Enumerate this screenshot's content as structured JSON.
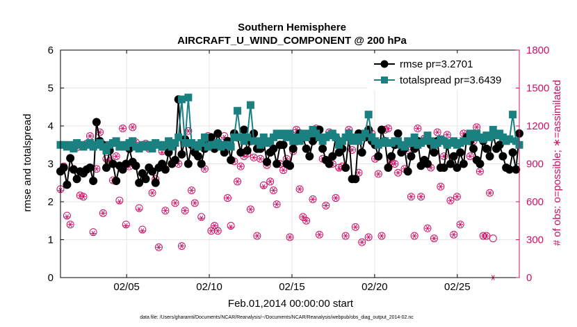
{
  "chart_data": {
    "type": "line",
    "title": "Southern Hemisphere",
    "subtitle": "AIRCRAFT_U_WIND_COMPONENT @ 200 hPa",
    "xlabel": "Feb.01,2014 00:00:00 start",
    "ylabel": "rmse and totalspread",
    "y2label": "# of obs: o=possible; ∗=assimilated",
    "footnote": "data file: /Users/gharamti/Documents/NCAR/Reanalysis/~/Documents/NCAR/Reanalysis/webpub/obs_diag_output_2014-02.nc",
    "xlim": [
      1.0,
      28.75
    ],
    "ylim": [
      0,
      6
    ],
    "y2lim": [
      0,
      1800
    ],
    "x_ticks": [
      5,
      10,
      15,
      20,
      25
    ],
    "x_tick_labels": [
      "02/05",
      "02/10",
      "02/15",
      "02/20",
      "02/25"
    ],
    "y_ticks": [
      0,
      1,
      2,
      3,
      4,
      5,
      6
    ],
    "y_tick_labels": [
      "0",
      "1",
      "2",
      "3",
      "4",
      "5",
      "6"
    ],
    "y2_ticks": [
      0,
      300,
      600,
      900,
      1200,
      1500,
      1800
    ],
    "y2_tick_labels": [
      "0",
      "300",
      "600",
      "900",
      "1200",
      "1500",
      "1800"
    ],
    "grid": true,
    "legend_position": "top-right",
    "colors": {
      "rmse": "#000000",
      "totalspread": "#1a8080",
      "obs": "#cc1166",
      "grid": "#e6e6e6"
    },
    "series": [
      {
        "name": "rmse pr=3.2701",
        "axis": "left",
        "marker": "circle",
        "values": [
          2.8,
          2.9,
          2.45,
          3.15,
          2.85,
          2.6,
          2.8,
          2.75,
          2.85,
          2.9,
          2.55,
          4.1,
          3.6,
          3.5,
          2.9,
          3.35,
          3.0,
          2.55,
          2.95,
          2.85,
          3.0,
          3.4,
          3.05,
          2.95,
          2.5,
          2.75,
          2.6,
          2.9,
          2.8,
          2.5,
          2.9,
          3.0,
          2.85,
          3.3,
          3.0,
          3.1,
          4.7,
          3.25,
          3.65,
          3.0,
          3.5,
          3.3,
          3.2,
          3.0,
          3.4,
          3.6,
          3.7,
          3.4,
          3.8,
          3.5,
          3.3,
          3.6,
          3.1,
          3.8,
          3.7,
          3.3,
          3.9,
          3.35,
          3.6,
          3.8,
          3.4,
          3.4,
          3.6,
          3.05,
          3.3,
          3.4,
          3.0,
          3.5,
          3.5,
          3.0,
          2.95,
          3.4,
          3.6,
          3.8,
          3.7,
          3.4,
          3.2,
          3.6,
          3.7,
          3.9,
          3.4,
          3.1,
          3.0,
          3.2,
          3.7,
          3.3,
          3.4,
          2.9,
          3.7,
          2.6,
          2.6,
          3.8,
          3.3,
          3.7,
          3.9,
          3.6,
          3.5,
          3.2,
          3.9,
          3.6,
          2.9,
          3.2,
          3.5,
          3.8,
          3.3,
          3.4,
          2.8,
          3.2,
          3.4,
          3.6,
          2.95,
          3.1,
          3.0,
          3.5,
          3.3,
          3.6,
          2.9,
          2.9,
          3.5,
          3.0,
          3.2,
          2.9,
          3.3,
          3.0,
          3.7,
          3.6,
          3.4,
          3.1,
          3.0,
          3.6,
          3.4,
          3.2,
          3.8,
          3.4,
          3.5,
          3.2,
          2.9,
          2.85,
          3.3,
          2.85,
          3.8
        ]
      },
      {
        "name": "totalspread pr=3.6439",
        "axis": "left",
        "marker": "square",
        "values": [
          3.5,
          3.5,
          3.45,
          3.5,
          3.4,
          3.55,
          3.5,
          3.45,
          3.5,
          3.55,
          3.45,
          3.5,
          3.55,
          3.45,
          3.35,
          3.5,
          3.55,
          3.6,
          3.45,
          3.5,
          3.45,
          3.55,
          3.6,
          3.45,
          3.4,
          3.5,
          3.45,
          3.5,
          3.4,
          3.55,
          3.5,
          3.45,
          3.5,
          3.6,
          3.45,
          3.55,
          3.7,
          4.7,
          3.55,
          4.75,
          3.55,
          3.5,
          3.45,
          3.55,
          3.7,
          3.45,
          3.5,
          3.5,
          3.55,
          3.45,
          3.5,
          3.5,
          3.45,
          3.7,
          4.4,
          3.7,
          3.6,
          3.7,
          4.55,
          3.6,
          3.6,
          3.5,
          3.7,
          3.55,
          3.6,
          3.7,
          3.8,
          3.75,
          3.8,
          3.7,
          3.8,
          3.6,
          3.7,
          3.6,
          3.8,
          3.7,
          3.8,
          3.9,
          3.8,
          3.7,
          3.6,
          3.7,
          3.75,
          3.8,
          3.7,
          3.5,
          3.6,
          3.7,
          3.8,
          3.6,
          3.7,
          3.6,
          3.7,
          3.8,
          4.3,
          3.7,
          3.6,
          3.5,
          3.55,
          3.6,
          3.55,
          3.55,
          3.6,
          3.6,
          3.5,
          3.45,
          3.6,
          3.55,
          3.7,
          3.5,
          3.55,
          3.6,
          3.75,
          3.6,
          3.5,
          3.55,
          3.65,
          3.6,
          3.5,
          3.55,
          3.6,
          3.5,
          3.55,
          3.6,
          3.6,
          3.8,
          3.7,
          3.8,
          3.7,
          3.65,
          3.75,
          3.7,
          3.9,
          3.75,
          3.8,
          3.7,
          3.6,
          3.65,
          4.3,
          3.6,
          3.5
        ]
      },
      {
        "name": "obs possible",
        "axis": "right",
        "marker": "circle-open",
        "values": [
          700,
          880,
          490,
          420,
          860,
          1030,
          650,
          640,
          1060,
          1120,
          360,
          860,
          1150,
          510,
          940,
          920,
          770,
          960,
          610,
          1180,
          420,
          880,
          1190,
          1070,
          550,
          380,
          1060,
          1020,
          670,
          780,
          240,
          1000,
          530,
          1070,
          900,
          590,
          900,
          250,
          530,
          1160,
          690,
          590,
          1050,
          480,
          860,
          1120,
          370,
          410,
          370,
          1040,
          1120,
          630,
          410,
          920,
          760,
          880,
          960,
          980,
          540,
          950,
          330,
          940,
          730,
          890,
          760,
          690,
          580,
          900,
          850,
          940,
          320,
          1000,
          1170,
          700,
          480,
          450,
          1110,
          620,
          1180,
          340,
          940,
          570,
          1150,
          900,
          630,
          870,
          880,
          330,
          1170,
          1010,
          400,
          830,
          280,
          1130,
          320,
          1140,
          940,
          820,
          330,
          1170,
          1180,
          920,
          900,
          830,
          1040,
          860,
          1010,
          640,
          330,
          1180,
          640,
          1100,
          390,
          870,
          310,
          1150,
          720,
          960,
          1130,
          610,
          340,
          640,
          420,
          1140,
          1120,
          960,
          1080,
          1190,
          840,
          330,
          330,
          670,
          310
        ]
      },
      {
        "name": "obs assimilated",
        "axis": "right",
        "marker": "asterisk",
        "values": [
          690,
          880,
          480,
          420,
          860,
          1030,
          650,
          640,
          1060,
          1120,
          350,
          860,
          1150,
          510,
          930,
          920,
          770,
          960,
          600,
          1180,
          410,
          880,
          1190,
          1070,
          540,
          370,
          1060,
          1020,
          670,
          780,
          240,
          990,
          530,
          1070,
          900,
          590,
          900,
          250,
          530,
          1160,
          690,
          590,
          1040,
          470,
          860,
          1120,
          370,
          410,
          370,
          1040,
          1110,
          630,
          400,
          920,
          760,
          880,
          960,
          980,
          540,
          950,
          330,
          940,
          720,
          890,
          760,
          690,
          580,
          900,
          850,
          940,
          320,
          1000,
          1170,
          700,
          480,
          450,
          1100,
          620,
          1180,
          340,
          940,
          570,
          1150,
          900,
          630,
          860,
          880,
          330,
          1170,
          1010,
          400,
          830,
          280,
          1130,
          320,
          1140,
          940,
          820,
          330,
          1170,
          1180,
          920,
          900,
          830,
          1040,
          860,
          1010,
          640,
          330,
          1180,
          640,
          1100,
          390,
          870,
          310,
          1150,
          720,
          960,
          1130,
          610,
          340,
          640,
          420,
          1140,
          1120,
          960,
          1080,
          1190,
          840,
          330,
          330,
          670,
          0
        ]
      }
    ],
    "legend": [
      {
        "label": "rmse pr=3.2701",
        "series": 0
      },
      {
        "label": "totalspread pr=3.6439",
        "series": 1
      }
    ]
  }
}
